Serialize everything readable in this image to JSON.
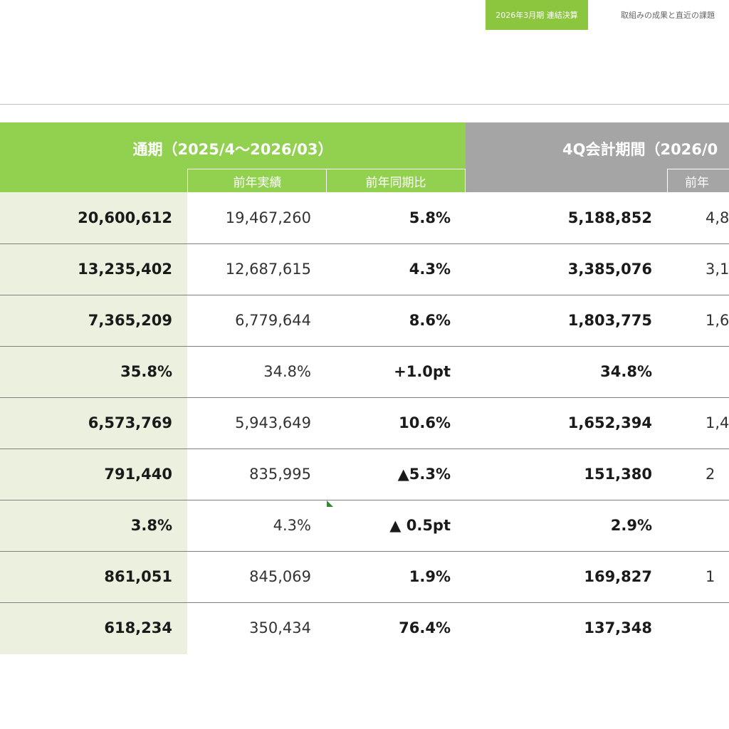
{
  "header": {
    "tab_active": "2026年3月期 連結決算",
    "tab_inactive": "取組みの成果と直近の課題"
  },
  "table": {
    "group1_title": "通期（2025/4～2026/03）",
    "group2_title": "4Q会計期間（2026/0",
    "sub_prior_results": "前年実績",
    "sub_yoy": "前年同期比",
    "sub_prior_truncated": "前年",
    "rows": [
      {
        "current": "20,600,612",
        "prior": "19,467,260",
        "yoy": "5.8%",
        "q4": "5,188,852",
        "q4_prior": "4,8"
      },
      {
        "current": "13,235,402",
        "prior": "12,687,615",
        "yoy": "4.3%",
        "q4": "3,385,076",
        "q4_prior": "3,1"
      },
      {
        "current": "7,365,209",
        "prior": "6,779,644",
        "yoy": "8.6%",
        "q4": "1,803,775",
        "q4_prior": "1,6"
      },
      {
        "current": "35.8%",
        "prior": "34.8%",
        "yoy": "+1.0pt",
        "q4": "34.8%",
        "q4_prior": ""
      },
      {
        "current": "6,573,769",
        "prior": "5,943,649",
        "yoy": "10.6%",
        "q4": "1,652,394",
        "q4_prior": "1,4"
      },
      {
        "current": "791,440",
        "prior": "835,995",
        "yoy": "▲5.3%",
        "q4": "151,380",
        "q4_prior": "2"
      },
      {
        "current": "3.8%",
        "prior": "4.3%",
        "yoy": "▲ 0.5pt",
        "q4": "2.9%",
        "q4_prior": ""
      },
      {
        "current": "861,051",
        "prior": "845,069",
        "yoy": "1.9%",
        "q4": "169,827",
        "q4_prior": "1"
      },
      {
        "current": "618,234",
        "prior": "350,434",
        "yoy": "76.4%",
        "q4": "137,348",
        "q4_prior": ""
      }
    ]
  },
  "colors": {
    "accent_green": "#8cc63f",
    "header_green": "#92d050",
    "header_gray": "#a5a5a5",
    "current_column_bg": "#ebf0df"
  }
}
